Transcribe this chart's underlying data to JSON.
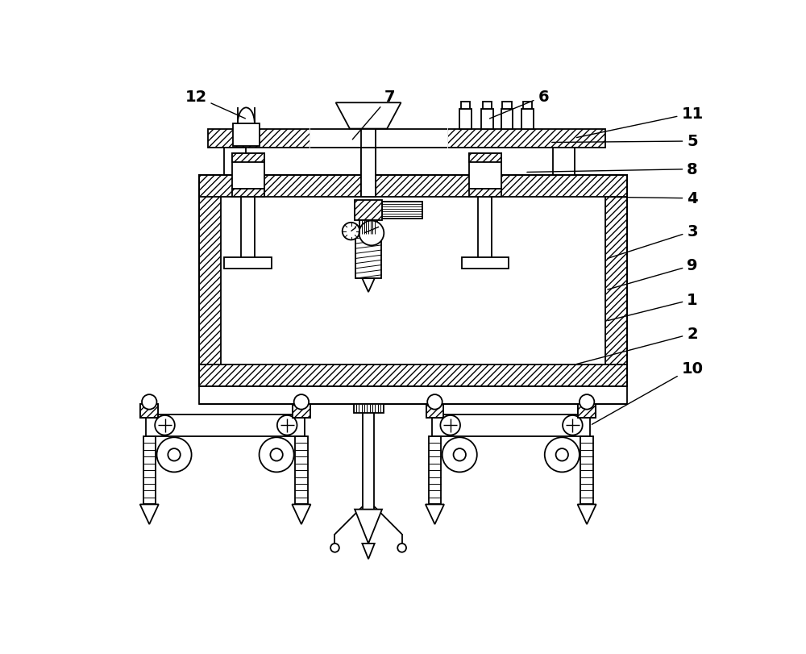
{
  "background_color": "#ffffff",
  "line_color": "#000000",
  "lw": 1.3,
  "label_fontsize": 14,
  "label_fontweight": "bold"
}
